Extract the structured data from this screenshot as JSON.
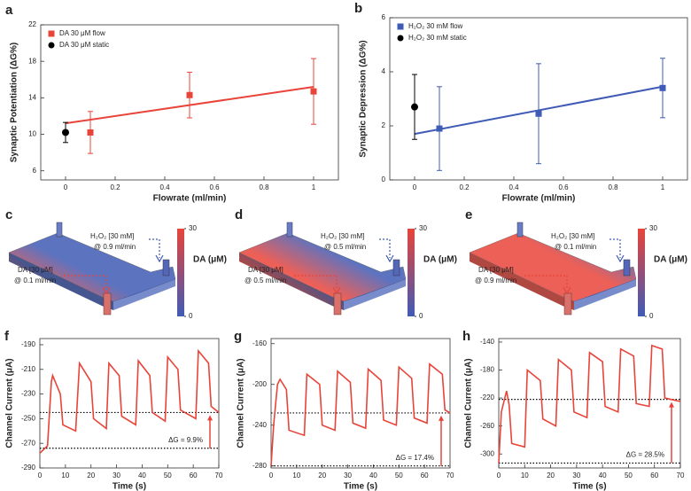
{
  "chart_data": [
    {
      "type": "scatter",
      "label": "a",
      "ylabel": "Synaptic Potentiation (ΔG%)",
      "xlabel": "Flowrate (ml/min)",
      "xlim": [
        -0.1,
        1.1
      ],
      "xticks": [
        0,
        0.2,
        0.4,
        0.6,
        0.8,
        1
      ],
      "ylim": [
        5,
        22
      ],
      "yticks": [
        6,
        10,
        14,
        18,
        22
      ],
      "legend": "upper left",
      "series": [
        {
          "name": "DA 30 μM flow",
          "color": "#e8443a",
          "marker": "square",
          "x": [
            0.1,
            0.5,
            1
          ],
          "values": [
            10.2,
            14.3,
            14.7
          ],
          "errors": [
            2.3,
            2.5,
            3.6
          ]
        },
        {
          "name": "DA 30 μM static",
          "color": "#000000",
          "marker": "circle",
          "x": [
            0
          ],
          "values": [
            10.2
          ],
          "errors": [
            1.1
          ]
        }
      ],
      "fit": {
        "color": "#e8443a",
        "x": [
          0,
          1
        ],
        "values": [
          11.2,
          15.2
        ]
      }
    },
    {
      "type": "scatter",
      "label": "b",
      "ylabel": "Synaptic Depression (ΔG%)",
      "xlabel": "Flowrate (ml/min)",
      "xlim": [
        -0.1,
        1.1
      ],
      "xticks": [
        0,
        0.2,
        0.4,
        0.6,
        0.8,
        1
      ],
      "ylim": [
        0,
        6
      ],
      "yticks": [
        0,
        2,
        4,
        6
      ],
      "legend": "upper left",
      "series": [
        {
          "name": "H₂O₂ 30 mM flow",
          "color": "#3f5bb5",
          "marker": "square",
          "x": [
            0.1,
            0.5,
            1
          ],
          "values": [
            1.9,
            2.45,
            3.4
          ],
          "errors": [
            1.55,
            1.85,
            1.1
          ]
        },
        {
          "name": "H₂O₂ 30 mM static",
          "color": "#000000",
          "marker": "circle",
          "x": [
            0
          ],
          "values": [
            2.7
          ],
          "errors": [
            1.2
          ]
        }
      ],
      "fit": {
        "color": "#3f5bb5",
        "x": [
          0,
          1
        ],
        "values": [
          1.7,
          3.45
        ]
      }
    },
    {
      "type": "device",
      "label": "c",
      "colorbar": {
        "label": "DA (μM)",
        "ticks": [
          0,
          30
        ]
      },
      "da": [
        "DA [30 μM]",
        "@ 0.1 ml/min"
      ],
      "h2o2": [
        "H₂O₂ [30 mM]",
        "@ 0.9 ml/min"
      ]
    },
    {
      "type": "device",
      "label": "d",
      "colorbar": {
        "label": "DA (μM)",
        "ticks": [
          0,
          30
        ]
      },
      "da": [
        "DA [30 μM]",
        "@ 0.5 ml/min"
      ],
      "h2o2": [
        "H₂O₂ [30 mM]",
        "@ 0.5 ml/min"
      ]
    },
    {
      "type": "device",
      "label": "e",
      "colorbar": {
        "label": "DA (μM)",
        "ticks": [
          0,
          30
        ]
      },
      "da": [
        "DA [30 μM]",
        "@ 0.9 ml/min"
      ],
      "h2o2": [
        "H₂O₂ [30 mM]",
        "@ 0.1 ml/min"
      ]
    },
    {
      "type": "line",
      "label": "f",
      "ylabel": "Channel Current (μA)",
      "xlabel": "Time (s)",
      "color": "#e8443a",
      "xlim": [
        0,
        70
      ],
      "xticks": [
        0,
        10,
        20,
        30,
        40,
        50,
        60,
        70
      ],
      "ylim": [
        -290,
        -185
      ],
      "yticks": [
        -190,
        -210,
        -230,
        -250,
        -270,
        -290
      ],
      "x": [
        0,
        3,
        4.5,
        5,
        8,
        9,
        14,
        15.5,
        20,
        21,
        26,
        27,
        31,
        32,
        37.5,
        38.5,
        43,
        44,
        49,
        50,
        54,
        55,
        61,
        62,
        66,
        67,
        70
      ],
      "values": [
        -278,
        -272,
        -220,
        -215,
        -230,
        -255,
        -260,
        -205,
        -220,
        -250,
        -258,
        -205,
        -215,
        -248,
        -255,
        -203,
        -215,
        -245,
        -252,
        -200,
        -210,
        -243,
        -250,
        -195,
        -205,
        -240,
        -245
      ],
      "reference_lines": [
        -245,
        -274
      ],
      "annotation": "ΔG = 9.9%"
    },
    {
      "type": "line",
      "label": "g",
      "ylabel": "Channel Current (μA)",
      "xlabel": "Time (s)",
      "color": "#e8443a",
      "xlim": [
        0,
        70
      ],
      "xticks": [
        0,
        10,
        20,
        30,
        40,
        50,
        60,
        70
      ],
      "ylim": [
        -282,
        -155
      ],
      "yticks": [
        -160,
        -200,
        -240,
        -280
      ],
      "x": [
        0,
        1,
        2.5,
        3.5,
        6,
        7,
        13,
        14,
        19,
        20,
        25,
        26,
        31,
        32,
        37,
        38,
        43,
        44,
        49,
        50,
        55,
        56,
        61,
        62,
        67,
        68,
        70
      ],
      "values": [
        -280,
        -240,
        -200,
        -195,
        -205,
        -245,
        -250,
        -190,
        -200,
        -240,
        -245,
        -187,
        -198,
        -238,
        -243,
        -185,
        -196,
        -235,
        -240,
        -183,
        -194,
        -233,
        -238,
        -180,
        -190,
        -225,
        -228
      ],
      "reference_lines": [
        -228,
        -280
      ],
      "annotation": "ΔG = 17.4%"
    },
    {
      "type": "line",
      "label": "h",
      "ylabel": "Channel Current (μA)",
      "xlabel": "Time (s)",
      "color": "#e8443a",
      "xlim": [
        0,
        70
      ],
      "xticks": [
        0,
        10,
        20,
        30,
        40,
        50,
        60,
        70
      ],
      "ylim": [
        -320,
        -135
      ],
      "yticks": [
        -140,
        -180,
        -220,
        -260,
        -300
      ],
      "x": [
        0,
        1,
        3,
        4,
        5,
        10,
        11,
        16,
        17,
        22,
        23,
        28,
        29,
        34,
        35,
        40,
        41,
        46,
        47,
        52,
        53,
        58,
        59,
        63,
        64,
        70
      ],
      "values": [
        -313,
        -240,
        -210,
        -230,
        -285,
        -290,
        -180,
        -195,
        -250,
        -260,
        -165,
        -180,
        -240,
        -248,
        -155,
        -168,
        -232,
        -240,
        -150,
        -160,
        -228,
        -232,
        -145,
        -150,
        -220,
        -225
      ],
      "reference_lines": [
        -222,
        -313
      ],
      "annotation": "ΔG = 28.5%"
    }
  ]
}
